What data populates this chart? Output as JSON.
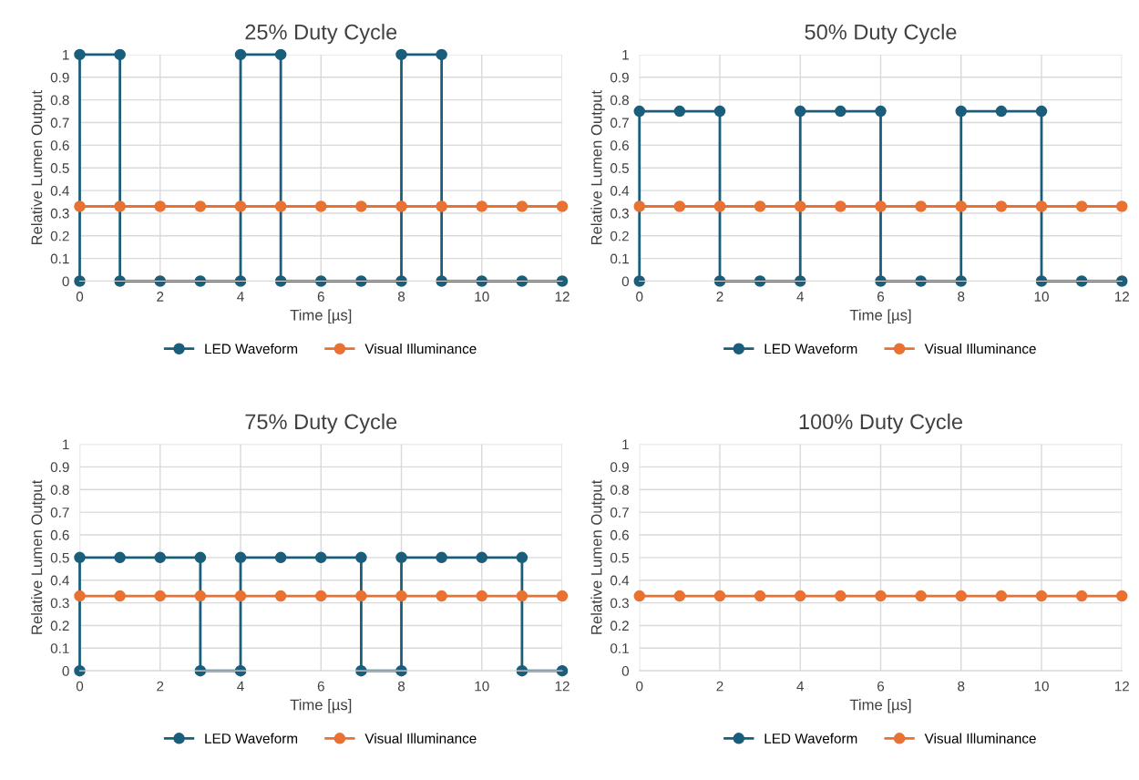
{
  "chart_data": [
    {
      "type": "line",
      "title": "25% Duty Cycle",
      "xlabel": "Time [µs]",
      "ylabel": "Relative Lumen Output",
      "xlim": [
        0,
        12
      ],
      "ylim": [
        0,
        1
      ],
      "xticks": [
        0,
        2,
        4,
        6,
        8,
        10,
        12
      ],
      "yticks": [
        0,
        0.1,
        0.2,
        0.3,
        0.4,
        0.5,
        0.6,
        0.7,
        0.8,
        0.9,
        1
      ],
      "grid": true,
      "legend": "bottom",
      "marker": "circle",
      "line_style": "solid",
      "series": [
        {
          "name": "LED Waveform",
          "color": "#1b5e7b",
          "x": [
            0,
            0,
            1,
            1,
            2,
            3,
            4,
            4,
            5,
            5,
            6,
            7,
            8,
            8,
            9,
            9,
            10,
            11,
            12
          ],
          "values": [
            0,
            1,
            1,
            0,
            0,
            0,
            0,
            1,
            1,
            0,
            0,
            0,
            0,
            1,
            1,
            0,
            0,
            0,
            0
          ]
        },
        {
          "name": "Visual Illuminance",
          "color": "#e97132",
          "x": [
            0,
            1,
            2,
            3,
            4,
            5,
            6,
            7,
            8,
            9,
            10,
            11,
            12
          ],
          "values": [
            0.33,
            0.33,
            0.33,
            0.33,
            0.33,
            0.33,
            0.33,
            0.33,
            0.33,
            0.33,
            0.33,
            0.33,
            0.33
          ]
        }
      ]
    },
    {
      "type": "line",
      "title": "50% Duty Cycle",
      "xlabel": "Time [µs]",
      "ylabel": "Relative Lumen Output",
      "xlim": [
        0,
        12
      ],
      "ylim": [
        0,
        1
      ],
      "xticks": [
        0,
        2,
        4,
        6,
        8,
        10,
        12
      ],
      "yticks": [
        0,
        0.1,
        0.2,
        0.3,
        0.4,
        0.5,
        0.6,
        0.7,
        0.8,
        0.9,
        1
      ],
      "grid": true,
      "legend": "bottom",
      "marker": "circle",
      "line_style": "solid",
      "series": [
        {
          "name": "LED Waveform",
          "color": "#1b5e7b",
          "x": [
            0,
            0,
            1,
            2,
            2,
            3,
            4,
            4,
            5,
            6,
            6,
            7,
            8,
            8,
            9,
            10,
            10,
            11,
            12
          ],
          "values": [
            0,
            0.75,
            0.75,
            0.75,
            0,
            0,
            0,
            0.75,
            0.75,
            0.75,
            0,
            0,
            0,
            0.75,
            0.75,
            0.75,
            0,
            0,
            0
          ]
        },
        {
          "name": "Visual Illuminance",
          "color": "#e97132",
          "x": [
            0,
            1,
            2,
            3,
            4,
            5,
            6,
            7,
            8,
            9,
            10,
            11,
            12
          ],
          "values": [
            0.33,
            0.33,
            0.33,
            0.33,
            0.33,
            0.33,
            0.33,
            0.33,
            0.33,
            0.33,
            0.33,
            0.33,
            0.33
          ]
        }
      ]
    },
    {
      "type": "line",
      "title": "75% Duty Cycle",
      "xlabel": "Time [µs]",
      "ylabel": "Relative Lumen Output",
      "xlim": [
        0,
        12
      ],
      "ylim": [
        0,
        1
      ],
      "xticks": [
        0,
        2,
        4,
        6,
        8,
        10,
        12
      ],
      "yticks": [
        0,
        0.1,
        0.2,
        0.3,
        0.4,
        0.5,
        0.6,
        0.7,
        0.8,
        0.9,
        1
      ],
      "grid": true,
      "legend": "bottom",
      "marker": "circle",
      "line_style": "solid",
      "series": [
        {
          "name": "LED Waveform",
          "color": "#1b5e7b",
          "x": [
            0,
            0,
            1,
            2,
            3,
            3,
            4,
            4,
            5,
            6,
            7,
            7,
            8,
            8,
            9,
            10,
            11,
            11,
            12
          ],
          "values": [
            0,
            0.5,
            0.5,
            0.5,
            0.5,
            0,
            0,
            0.5,
            0.5,
            0.5,
            0.5,
            0,
            0,
            0.5,
            0.5,
            0.5,
            0.5,
            0,
            0
          ]
        },
        {
          "name": "Visual Illuminance",
          "color": "#e97132",
          "x": [
            0,
            1,
            2,
            3,
            4,
            5,
            6,
            7,
            8,
            9,
            10,
            11,
            12
          ],
          "values": [
            0.33,
            0.33,
            0.33,
            0.33,
            0.33,
            0.33,
            0.33,
            0.33,
            0.33,
            0.33,
            0.33,
            0.33,
            0.33
          ]
        }
      ]
    },
    {
      "type": "line",
      "title": "100% Duty Cycle",
      "xlabel": "Time [µs]",
      "ylabel": "Relative Lumen Output",
      "xlim": [
        0,
        12
      ],
      "ylim": [
        0,
        1
      ],
      "xticks": [
        0,
        2,
        4,
        6,
        8,
        10,
        12
      ],
      "yticks": [
        0,
        0.1,
        0.2,
        0.3,
        0.4,
        0.5,
        0.6,
        0.7,
        0.8,
        0.9,
        1
      ],
      "grid": true,
      "legend": "bottom",
      "marker": "circle",
      "line_style": "solid",
      "series": [
        {
          "name": "LED Waveform",
          "color": "#1b5e7b"
        },
        {
          "name": "Visual Illuminance",
          "color": "#e97132",
          "x": [
            0,
            1,
            2,
            3,
            4,
            5,
            6,
            7,
            8,
            9,
            10,
            11,
            12
          ],
          "values": [
            0.33,
            0.33,
            0.33,
            0.33,
            0.33,
            0.33,
            0.33,
            0.33,
            0.33,
            0.33,
            0.33,
            0.33,
            0.33
          ]
        }
      ]
    }
  ]
}
